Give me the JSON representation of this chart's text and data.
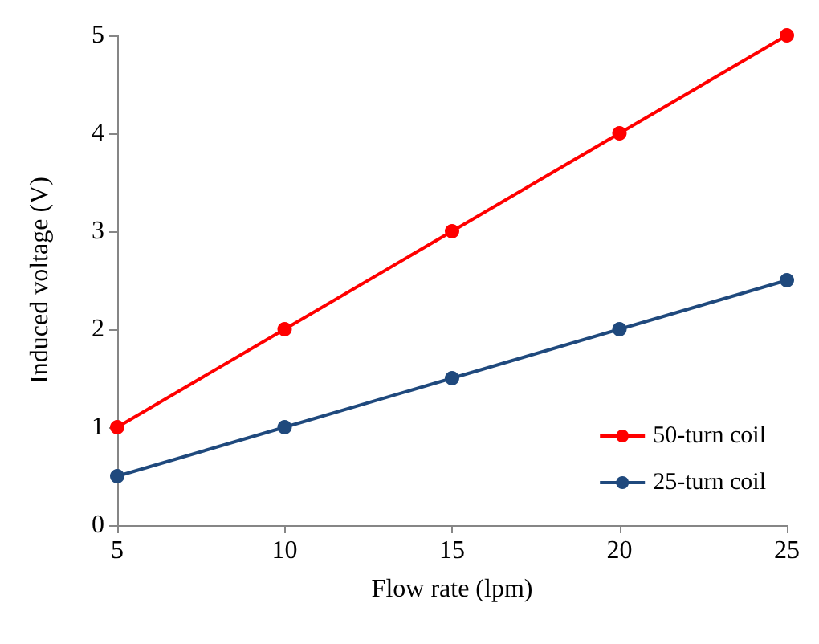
{
  "chart_data": {
    "type": "line",
    "xlabel": "Flow rate (lpm)",
    "ylabel": "Induced voltage (V)",
    "x": [
      5,
      10,
      15,
      20,
      25
    ],
    "series": [
      {
        "name": "50-turn coil",
        "color": "#ff0000",
        "values": [
          1,
          2,
          3,
          4,
          5
        ]
      },
      {
        "name": "25-turn coil",
        "color": "#1f497d",
        "values": [
          0.5,
          1,
          1.5,
          2,
          2.5
        ]
      }
    ],
    "xlim": [
      5,
      25
    ],
    "xticks": [
      5,
      10,
      15,
      20,
      25
    ],
    "ylim": [
      0,
      5
    ],
    "yticks": [
      0,
      1,
      2,
      3,
      4,
      5
    ],
    "grid": false,
    "legend": "bottom right",
    "marker": "circle",
    "line_style": "solid"
  }
}
